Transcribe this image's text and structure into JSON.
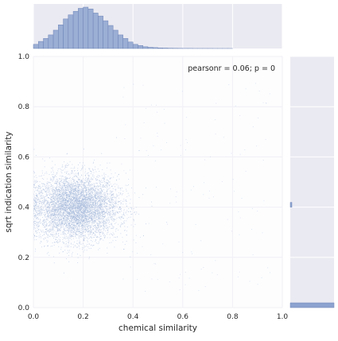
{
  "chart_data": {
    "type": "scatter",
    "title": "",
    "xlabel": "chemical similarity",
    "ylabel": "sqrt indication similarity",
    "xlim": [
      0.0,
      1.0
    ],
    "ylim": [
      0.0,
      1.0
    ],
    "x_ticks": [
      "0.0",
      "0.2",
      "0.4",
      "0.6",
      "0.8",
      "1.0"
    ],
    "y_ticks": [
      "0.0",
      "0.2",
      "0.4",
      "0.6",
      "0.8",
      "1.0"
    ],
    "annotation": "pearsonr = 0.06; p = 0",
    "grid": true,
    "scatter_cloud": {
      "center_x": 0.17,
      "center_y": 0.4,
      "sd_x": 0.085,
      "sd_y": 0.065,
      "approx_points": 6000
    },
    "marginal_x_histogram": {
      "bin_edges_start": 0.0,
      "bin_width": 0.02,
      "counts": [
        7,
        12,
        17,
        23,
        31,
        40,
        50,
        57,
        63,
        68,
        70,
        67,
        60,
        55,
        47,
        39,
        31,
        23,
        17,
        11,
        7,
        5,
        3,
        2,
        1.5,
        1,
        0.7,
        0.5,
        0.4,
        0.3,
        0.2,
        0.2,
        0.1,
        0.1,
        0.1,
        0.1,
        0.05,
        0.05,
        0.05,
        0.05
      ]
    },
    "marginal_y_histogram": {
      "note_bins": "visible bars",
      "bins": [
        {
          "y": 0.0,
          "count": 100
        },
        {
          "y": 0.4,
          "count": 2
        }
      ]
    },
    "colors": {
      "points": "#9eb4d8",
      "bars": "#8da3cf",
      "bar_edge": "#6f86b8",
      "panel_bg": "#eaeaf2",
      "grid": "#ffffff",
      "text": "#262626"
    }
  }
}
